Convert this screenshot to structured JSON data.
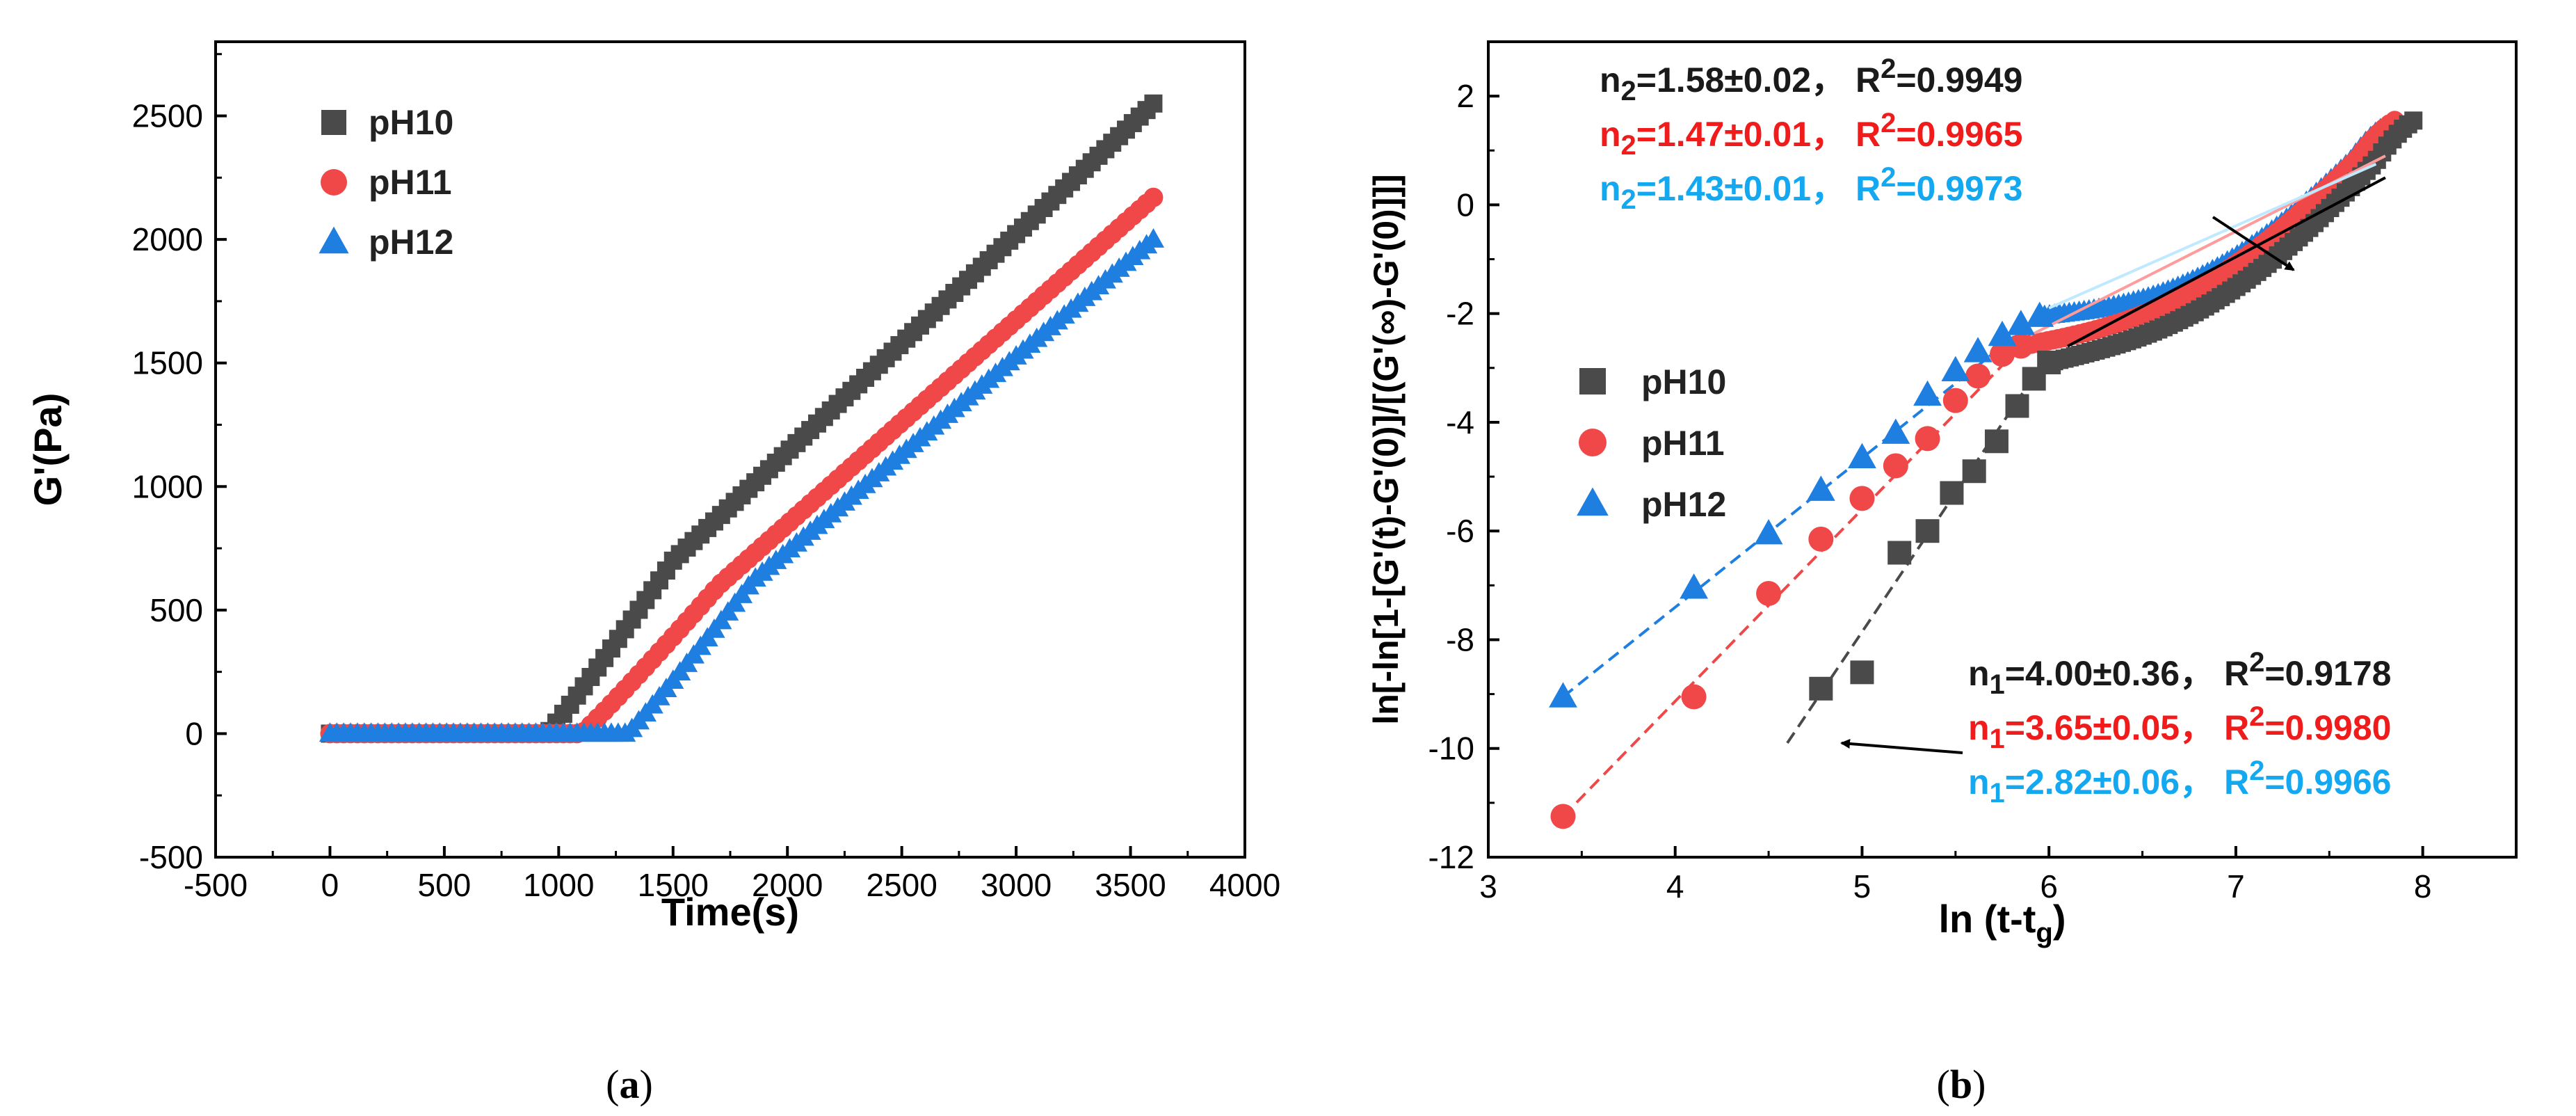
{
  "chart_data": [
    {
      "id": "a",
      "type": "scatter",
      "caption": "(a)",
      "caption_parts": [
        "(",
        "a",
        ")"
      ],
      "xlabel": "Time(s)",
      "ylabel": "G'(Pa)",
      "xlim": [
        -500,
        4000
      ],
      "ylim": [
        -500,
        2800
      ],
      "xticks": [
        -500,
        0,
        500,
        1000,
        1500,
        2000,
        2500,
        3000,
        3500,
        4000
      ],
      "yticks": [
        -500,
        0,
        500,
        1000,
        1500,
        2000,
        2500
      ],
      "legend": {
        "position": "top-left"
      },
      "series": [
        {
          "name": "pH10",
          "marker": "square",
          "color": "#4a4a4a",
          "gel_time": 950,
          "end": [
            3600,
            2550
          ],
          "knee": [
            1500,
            700
          ]
        },
        {
          "name": "pH11",
          "marker": "circle",
          "color": "#f04848",
          "gel_time": 1100,
          "end": [
            3600,
            2170
          ],
          "knee": [
            1700,
            600
          ]
        },
        {
          "name": "pH12",
          "marker": "triangle",
          "color": "#1f7fe0",
          "gel_time": 1300,
          "end": [
            3600,
            2000
          ],
          "knee": [
            1850,
            620
          ]
        }
      ]
    },
    {
      "id": "b",
      "type": "scatter",
      "caption": "(b)",
      "caption_parts": [
        "(",
        "b",
        ")"
      ],
      "xlabel": "ln (t-t",
      "xlabel_sub": "g",
      "xlabel_close": ")",
      "ylabel": "ln[-ln[1-[G'(t)-G'(0)]/[(G'(∞)-G'(0)]]]",
      "xlim": [
        3,
        8.5
      ],
      "ylim": [
        -12,
        3
      ],
      "xticks": [
        3,
        4,
        5,
        6,
        7,
        8
      ],
      "yticks": [
        -12,
        -10,
        -8,
        -6,
        -4,
        -2,
        0,
        2
      ],
      "legend": {
        "position": "middle-left"
      },
      "series": [
        {
          "name": "pH10",
          "marker": "square",
          "color": "#4a4a4a",
          "points": [
            [
              4.78,
              -8.9
            ],
            [
              5.0,
              -8.6
            ],
            [
              5.2,
              -6.4
            ],
            [
              5.35,
              -6.0
            ],
            [
              5.48,
              -5.3
            ],
            [
              5.6,
              -4.9
            ],
            [
              5.72,
              -4.35
            ],
            [
              5.83,
              -3.7
            ],
            [
              5.92,
              -3.2
            ],
            [
              6.0,
              -2.9
            ]
          ],
          "fit1": [
            [
              4.6,
              -9.9
            ],
            [
              5.95,
              -3.0
            ]
          ],
          "fit2": [
            [
              6.1,
              -2.6
            ],
            [
              7.8,
              0.5
            ]
          ],
          "curve_end": [
            7.95,
            1.55
          ]
        },
        {
          "name": "pH11",
          "marker": "circle",
          "color": "#f04848",
          "points": [
            [
              3.4,
              -11.25
            ],
            [
              4.1,
              -9.05
            ],
            [
              4.5,
              -7.15
            ],
            [
              4.78,
              -6.15
            ],
            [
              5.0,
              -5.4
            ],
            [
              5.18,
              -4.8
            ],
            [
              5.35,
              -4.3
            ],
            [
              5.5,
              -3.6
            ],
            [
              5.62,
              -3.15
            ],
            [
              5.75,
              -2.75
            ],
            [
              5.85,
              -2.6
            ]
          ],
          "fit1": [
            [
              3.4,
              -11.25
            ],
            [
              5.85,
              -2.6
            ]
          ],
          "fit2": [
            [
              5.9,
              -2.4
            ],
            [
              7.8,
              0.9
            ]
          ],
          "curve_end": [
            7.85,
            1.55
          ]
        },
        {
          "name": "pH12",
          "marker": "triangle",
          "color": "#1f7fe0",
          "points": [
            [
              3.4,
              -9.05
            ],
            [
              4.1,
              -7.05
            ],
            [
              4.5,
              -6.05
            ],
            [
              4.78,
              -5.25
            ],
            [
              5.0,
              -4.65
            ],
            [
              5.18,
              -4.2
            ],
            [
              5.35,
              -3.5
            ],
            [
              5.5,
              -3.05
            ],
            [
              5.62,
              -2.7
            ],
            [
              5.75,
              -2.4
            ],
            [
              5.85,
              -2.2
            ],
            [
              5.95,
              -2.05
            ]
          ],
          "fit1": [
            [
              3.4,
              -9.05
            ],
            [
              5.95,
              -2.05
            ]
          ],
          "fit2": [
            [
              6.0,
              -1.9
            ],
            [
              7.75,
              0.75
            ]
          ],
          "curve_end": [
            7.8,
            1.45
          ]
        }
      ],
      "annotations": {
        "n2": [
          {
            "main": "n",
            "sub": "2",
            "mid": "=1.58±0.02， R",
            "sup": "2",
            "tail": "=0.9949",
            "color": "#1a1a1a"
          },
          {
            "main": "n",
            "sub": "2",
            "mid": "=1.47±0.01， R",
            "sup": "2",
            "tail": "=0.9965",
            "color": "#f01c1c"
          },
          {
            "main": "n",
            "sub": "2",
            "mid": "=1.43±0.01， R",
            "sup": "2",
            "tail": "=0.9973",
            "color": "#14a8f0"
          }
        ],
        "n1": [
          {
            "main": "n",
            "sub": "1",
            "mid": "=4.00±0.36， R",
            "sup": "2",
            "tail": "=0.9178",
            "color": "#1a1a1a"
          },
          {
            "main": "n",
            "sub": "1",
            "mid": "=3.65±0.05， R",
            "sup": "2",
            "tail": "=0.9980",
            "color": "#f01c1c"
          },
          {
            "main": "n",
            "sub": "1",
            "mid": "=2.82±0.06， R",
            "sup": "2",
            "tail": "=0.9966",
            "color": "#14a8f0"
          }
        ]
      }
    }
  ]
}
